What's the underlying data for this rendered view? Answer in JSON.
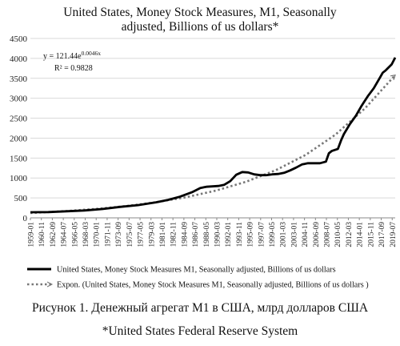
{
  "chart_data": {
    "type": "line",
    "title_lines": [
      "United States, Money Stock Measures, M1, Seasonally",
      "adjusted, Billions of us dollars*"
    ],
    "ylim": [
      0,
      4500
    ],
    "yticks": [
      0,
      500,
      1000,
      1500,
      2000,
      2500,
      3000,
      3500,
      4000,
      4500
    ],
    "x_tick_labels": [
      "1959-01",
      "1960-11",
      "1962-09",
      "1964-07",
      "1966-05",
      "1968-03",
      "1970-01",
      "1971-11",
      "1973-09",
      "1975-07",
      "1977-05",
      "1979-03",
      "1981-01",
      "1982-11",
      "1984-09",
      "1986-07",
      "1988-05",
      "1990-03",
      "1992-01",
      "1993-11",
      "1995-09",
      "1997-07",
      "1999-05",
      "2001-03",
      "2003-01",
      "2004-11",
      "2006-09",
      "2008-07",
      "2010-05",
      "2012-03",
      "2014-01",
      "2015-11",
      "2017-09",
      "2019-07"
    ],
    "x_range": [
      "1959-01",
      "2020-01"
    ],
    "grid": "horizontal",
    "legend_position": "bottom",
    "series": [
      {
        "name": "United States, Money Stock Measures M1, Seasonally adjusted, Billions of us dollars",
        "style": "solid",
        "color": "#000000",
        "x": [
          "1959-01",
          "1962-01",
          "1965-01",
          "1968-01",
          "1971-01",
          "1974-01",
          "1977-01",
          "1980-01",
          "1982-01",
          "1984-01",
          "1986-01",
          "1987-06",
          "1988-06",
          "1989-06",
          "1990-06",
          "1991-06",
          "1992-06",
          "1993-06",
          "1994-06",
          "1995-06",
          "1996-06",
          "1997-06",
          "1998-06",
          "1999-06",
          "2000-06",
          "2001-06",
          "2002-06",
          "2003-06",
          "2004-06",
          "2005-06",
          "2006-06",
          "2007-06",
          "2008-06",
          "2008-12",
          "2009-06",
          "2010-06",
          "2011-01",
          "2011-06",
          "2012-06",
          "2013-06",
          "2014-06",
          "2015-06",
          "2016-06",
          "2017-06",
          "2017-12",
          "2018-06",
          "2019-06",
          "2020-01"
        ],
        "y": [
          140,
          145,
          165,
          185,
          220,
          275,
          320,
          390,
          450,
          530,
          640,
          750,
          780,
          790,
          800,
          830,
          920,
          1080,
          1150,
          1140,
          1090,
          1070,
          1070,
          1090,
          1100,
          1130,
          1190,
          1260,
          1340,
          1370,
          1370,
          1370,
          1410,
          1620,
          1680,
          1730,
          1960,
          2100,
          2350,
          2560,
          2820,
          3050,
          3250,
          3510,
          3640,
          3700,
          3850,
          4020
        ]
      },
      {
        "name": "Expon. (United States, Money Stock Measures M1, Seasonally adjusted, Billions of us dollars )",
        "style": "dotted",
        "color": "#777777",
        "equation": "y = 121.44e^0.0046x",
        "r_squared": "R² = 0.9828",
        "x": [
          "1959-01",
          "1965-01",
          "1970-01",
          "1975-01",
          "1980-01",
          "1985-01",
          "1990-01",
          "1995-01",
          "2000-01",
          "2005-01",
          "2010-01",
          "2015-01",
          "2020-01"
        ],
        "y": [
          121,
          170,
          224,
          296,
          391,
          517,
          683,
          903,
          1194,
          1578,
          2085,
          2755,
          3580
        ]
      }
    ]
  },
  "annotation": {
    "equation_prefix": "y = 121.44e",
    "equation_exponent": "0.0046x",
    "r_squared": "R² = 0.9828"
  },
  "caption": {
    "main": "Рисунок 1. Денежный агрегат М1 в США, млрд долларов США",
    "source": "*United States Federal Reserve System"
  }
}
